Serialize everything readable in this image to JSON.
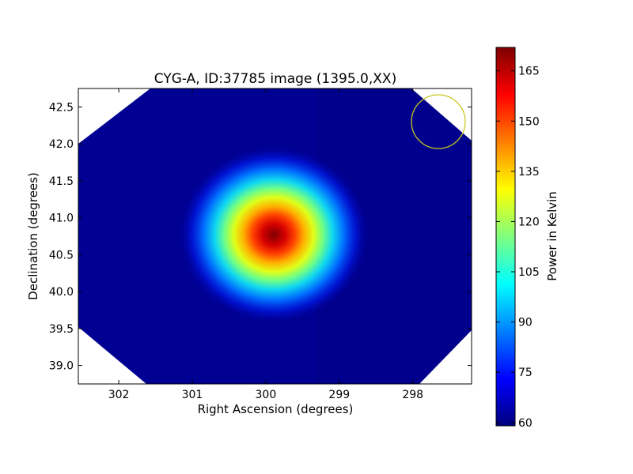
{
  "chart_data": {
    "type": "heatmap",
    "title": "CYG-A, ID:37785 image (1395.0,XX)",
    "xlabel": "Right Ascension (degrees)",
    "ylabel": "Declination (degrees)",
    "x_inverted": true,
    "xlim": [
      302.55,
      297.2
    ],
    "ylim": [
      38.75,
      42.75
    ],
    "x_ticks": [
      "302",
      "301",
      "300",
      "299",
      "298"
    ],
    "y_ticks": [
      "39.0",
      "39.5",
      "40.0",
      "40.5",
      "41.0",
      "41.5",
      "42.0",
      "42.5"
    ],
    "colormap": "jet",
    "colorbar": {
      "label": "Power in Kelvin",
      "range": [
        59,
        172
      ],
      "ticks": [
        "60",
        "75",
        "90",
        "105",
        "120",
        "135",
        "150",
        "165"
      ]
    },
    "source": {
      "ra": 299.85,
      "dec": 40.74,
      "peak_kelvin": 172,
      "background_kelvin": 62
    },
    "beam_circle": {
      "ra": 297.65,
      "dec": 42.28,
      "color": "#c8c81e"
    },
    "coverage_corners_blank": [
      "top-left",
      "top-right",
      "bottom-left",
      "bottom-right"
    ]
  }
}
